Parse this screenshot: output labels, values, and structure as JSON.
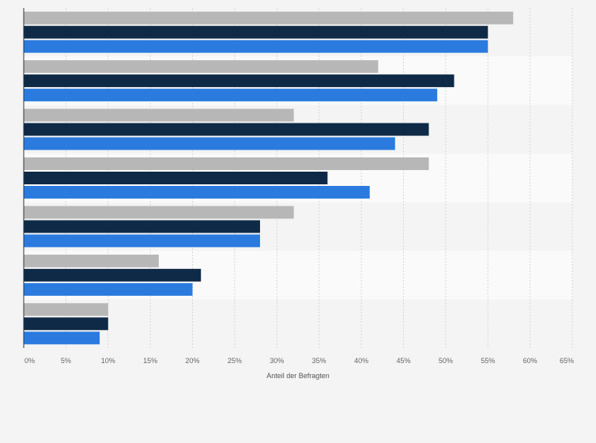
{
  "chart_data": {
    "type": "bar",
    "orientation": "horizontal",
    "categories": [
      "",
      "",
      "",
      "",
      "",
      "",
      ""
    ],
    "series": [
      {
        "color": "#b7b7b7",
        "values": [
          58,
          42,
          32,
          48,
          32,
          16,
          10
        ]
      },
      {
        "color": "#0e2a47",
        "values": [
          55,
          51,
          48,
          36,
          28,
          21,
          10
        ]
      },
      {
        "color": "#2b7bdf",
        "values": [
          55,
          49,
          44,
          41,
          28,
          20,
          9
        ]
      }
    ],
    "xlabel": "Anteil der Befragten",
    "xlim": [
      0,
      65
    ],
    "xticks": [
      "0%",
      "5%",
      "10%",
      "15%",
      "20%",
      "25%",
      "30%",
      "35%",
      "40%",
      "45%",
      "50%",
      "55%",
      "60%",
      "65%"
    ],
    "grid": "vertical dashed",
    "band_colors": [
      "#f4f4f4",
      "#fafafa"
    ]
  }
}
